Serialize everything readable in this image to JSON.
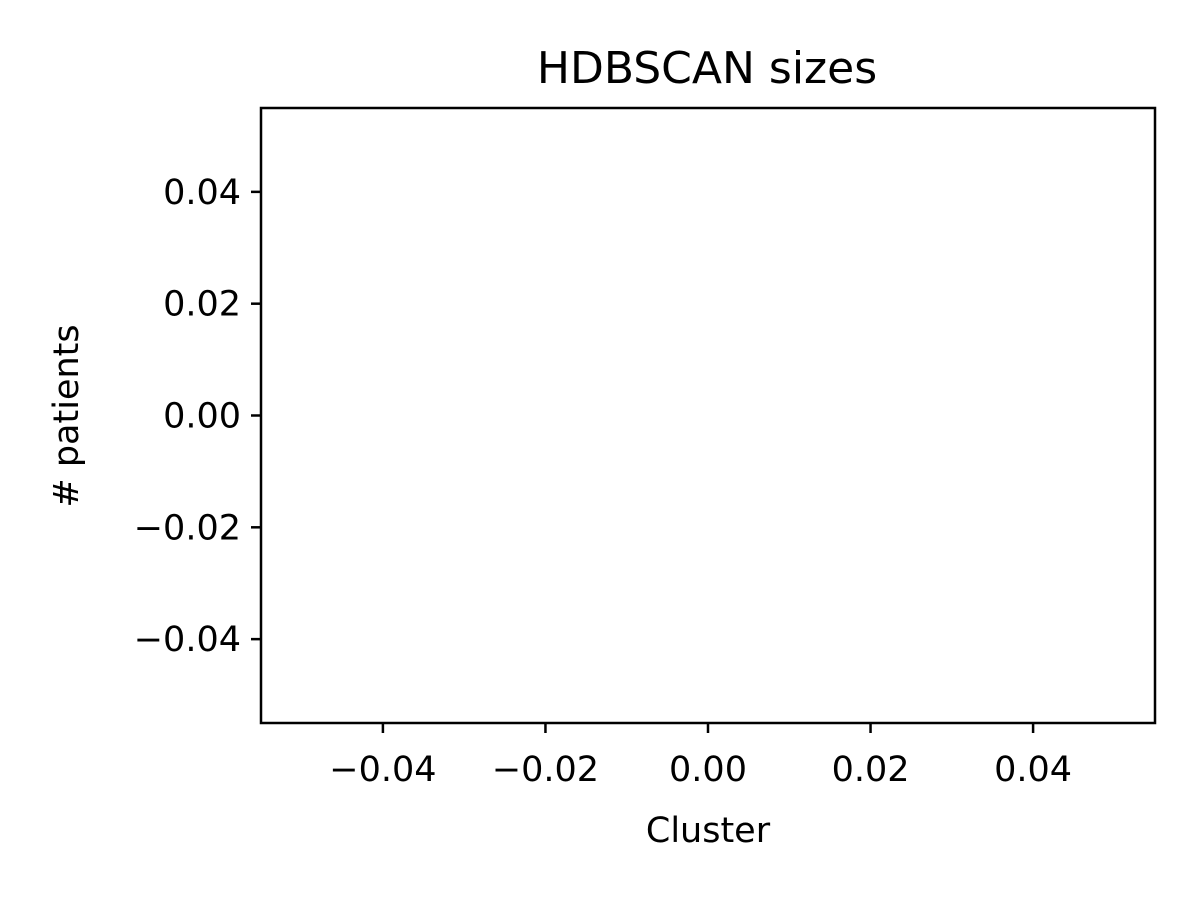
{
  "chart_data": {
    "type": "bar",
    "title": "HDBSCAN sizes",
    "xlabel": "Cluster",
    "ylabel": "# patients",
    "xlim": [
      -0.055,
      0.055
    ],
    "ylim": [
      -0.055,
      0.055
    ],
    "x_ticks": [
      -0.04,
      -0.02,
      0.0,
      0.02,
      0.04
    ],
    "x_tick_labels": [
      "−0.04",
      "−0.02",
      "0.00",
      "0.02",
      "0.04"
    ],
    "y_ticks": [
      -0.04,
      -0.02,
      0.0,
      0.02,
      0.04
    ],
    "y_tick_labels": [
      "−0.04",
      "−0.02",
      "0.00",
      "0.02",
      "0.04"
    ],
    "categories": [],
    "values": [],
    "grid": false,
    "colors": {
      "axis": "#000000",
      "background": "#ffffff"
    }
  }
}
